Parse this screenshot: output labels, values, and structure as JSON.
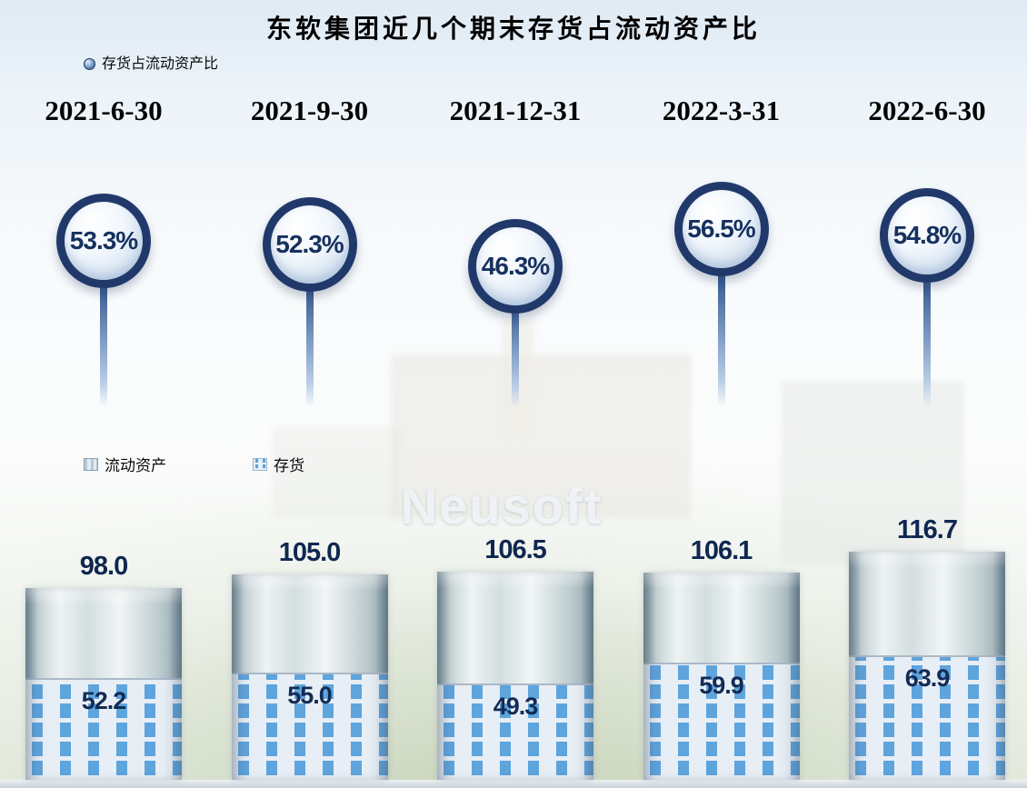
{
  "title": "东软集团近几个期末存货占流动资产比",
  "legend": {
    "ratio_label": "存货占流动资产比",
    "assets_label": "流动资产",
    "inventory_label": "存货"
  },
  "watermark": "Neusoft",
  "chart_data": {
    "type": "bar",
    "title": "东软集团近几个期末存货占流动资产比",
    "categories": [
      "2021-6-30",
      "2021-9-30",
      "2021-12-31",
      "2022-3-31",
      "2022-6-30"
    ],
    "series": [
      {
        "name": "流动资产",
        "values": [
          98.0,
          105.0,
          106.5,
          106.1,
          116.7
        ],
        "labels": [
          "98.0",
          "105.0",
          "106.5",
          "106.1",
          "116.7"
        ]
      },
      {
        "name": "存货",
        "values": [
          52.2,
          55.0,
          49.3,
          59.9,
          63.9
        ],
        "labels": [
          "52.2",
          "55.0",
          "49.3",
          "59.9",
          "63.9"
        ]
      },
      {
        "name": "存货占流动资产比",
        "unit": "%",
        "values": [
          53.3,
          52.3,
          46.3,
          56.5,
          54.8
        ],
        "labels": [
          "53.3%",
          "52.3%",
          "46.3%",
          "56.5%",
          "54.8%"
        ]
      }
    ],
    "ylim": [
      0,
      130
    ],
    "grid": false,
    "legend_position": "top-left"
  },
  "colors": {
    "circle_ring": "#21396a",
    "number_text": "#16315f",
    "inventory_dot": "#57a0dc",
    "title_text": "#000000"
  }
}
